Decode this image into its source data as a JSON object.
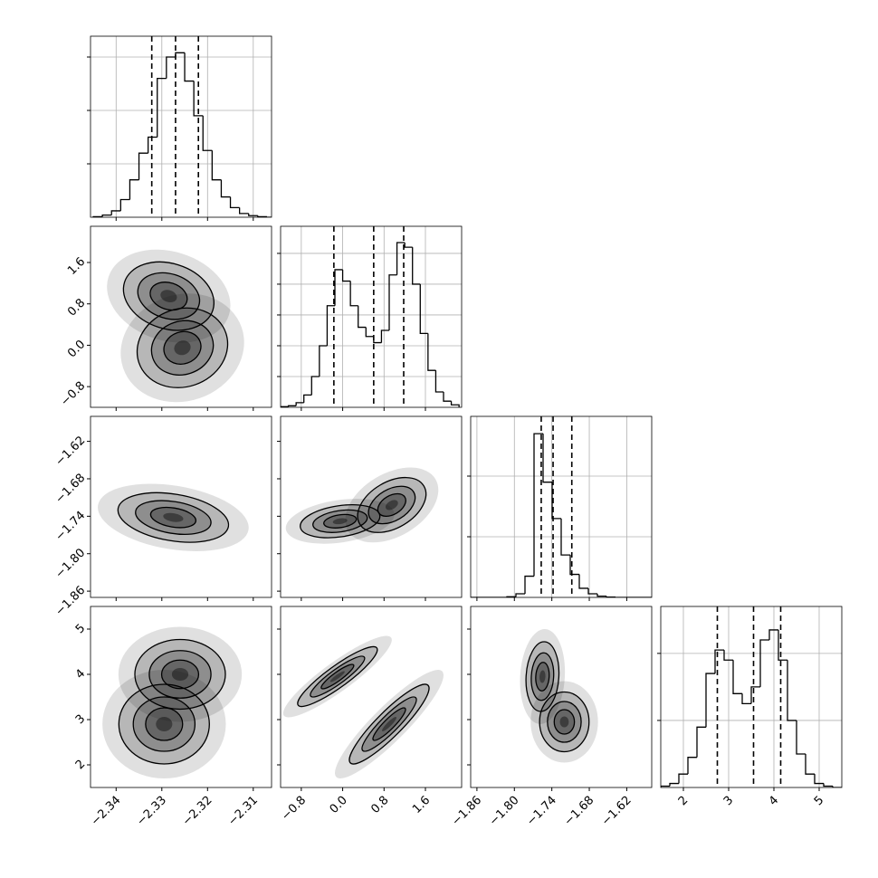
{
  "chart_data": {
    "type": "corner",
    "grid": true,
    "line_color": "#000000",
    "density_color": "#000000",
    "parameters": [
      {
        "lim": [
          -2.3456,
          -2.306
        ],
        "ticks": [
          {
            "value": -2.34,
            "label": "−2.34"
          },
          {
            "value": -2.33,
            "label": "−2.33"
          },
          {
            "value": -2.32,
            "label": "−2.32"
          },
          {
            "value": -2.31,
            "label": "−2.31"
          }
        ],
        "quantiles": [
          -2.3322,
          -2.327,
          -2.322
        ],
        "hist": {
          "bins": [
            -2.345,
            -2.343,
            -2.341,
            -2.339,
            -2.337,
            -2.335,
            -2.333,
            -2.331,
            -2.329,
            -2.327,
            -2.325,
            -2.323,
            -2.321,
            -2.319,
            -2.317,
            -2.315,
            -2.313,
            -2.311,
            -2.309,
            -2.307,
            -2.305
          ],
          "counts": [
            10,
            40,
            120,
            330,
            700,
            1200,
            1500,
            2600,
            3000,
            3080,
            2550,
            1900,
            1250,
            700,
            380,
            180,
            70,
            30,
            10,
            0
          ],
          "ylim": [
            0,
            3390
          ],
          "yticks": [
            1000,
            2000,
            3000
          ]
        },
        "pairs": []
      },
      {
        "lim": [
          -1.2,
          2.3
        ],
        "ticks": [
          {
            "value": -0.8,
            "label": "−0.8"
          },
          {
            "value": 0.0,
            "label": "0.0"
          },
          {
            "value": 0.8,
            "label": "0.8"
          },
          {
            "value": 1.6,
            "label": "1.6"
          }
        ],
        "quantiles": [
          -0.17,
          0.6,
          1.18
        ],
        "hist": {
          "bins": [
            -1.2,
            -1.05,
            -0.9,
            -0.75,
            -0.6,
            -0.45,
            -0.3,
            -0.15,
            0,
            0.15,
            0.3,
            0.45,
            0.6,
            0.75,
            0.9,
            1.05,
            1.2,
            1.35,
            1.5,
            1.65,
            1.8,
            1.95,
            2.1,
            2.25
          ],
          "counts": [
            2,
            5,
            15,
            40,
            100,
            200,
            330,
            447,
            410,
            330,
            260,
            230,
            210,
            250,
            430,
            535,
            520,
            400,
            240,
            120,
            50,
            20,
            8
          ],
          "ylim": [
            0,
            588
          ],
          "yticks": [
            100,
            200,
            300,
            400,
            500
          ]
        },
        "pairs": [
          {
            "modes": [
              {
                "x": -2.3285,
                "y": 0.95,
                "sx": 0.0045,
                "sy": 0.3,
                "rho": -0.2
              },
              {
                "x": -2.3255,
                "y": -0.05,
                "sx": 0.0045,
                "sy": 0.35,
                "rho": 0.1
              }
            ]
          }
        ]
      },
      {
        "lim": [
          -1.87,
          -1.58
        ],
        "ticks": [
          {
            "value": -1.86,
            "label": "−1.86"
          },
          {
            "value": -1.8,
            "label": "−1.80"
          },
          {
            "value": -1.74,
            "label": "−1.74"
          },
          {
            "value": -1.68,
            "label": "−1.68"
          },
          {
            "value": -1.62,
            "label": "−1.62"
          }
        ],
        "quantiles": [
          -1.757,
          -1.738,
          -1.708
        ],
        "hist": {
          "bins": [
            -1.87,
            -1.8555,
            -1.841,
            -1.8265,
            -1.812,
            -1.7975,
            -1.783,
            -1.7685,
            -1.754,
            -1.7395,
            -1.725,
            -1.7105,
            -1.696,
            -1.6815,
            -1.667,
            -1.6525,
            -1.638,
            -1.6235,
            -1.609,
            -1.5945,
            -1.58
          ],
          "counts": [
            0,
            0,
            0,
            0,
            10,
            60,
            350,
            2700,
            1900,
            1300,
            700,
            380,
            150,
            60,
            20,
            5,
            0,
            0,
            0,
            0
          ],
          "ylim": [
            0,
            2985
          ],
          "yticks": [
            1000,
            2000
          ]
        },
        "pairs": [
          {
            "modes": [
              {
                "x": -2.3275,
                "y": -1.742,
                "sx": 0.0055,
                "sy": 0.018,
                "rho": -0.3
              }
            ]
          },
          {
            "modes": [
              {
                "x": -0.05,
                "y": -1.748,
                "sx": 0.35,
                "sy": 0.012,
                "rho": 0.3
              },
              {
                "x": 0.95,
                "y": -1.722,
                "sx": 0.3,
                "sy": 0.02,
                "rho": 0.4
              }
            ]
          }
        ]
      },
      {
        "lim": [
          1.5,
          5.5
        ],
        "ticks": [
          2,
          3,
          4,
          5
        ],
        "quantiles": [
          2.75,
          3.55,
          4.15
        ],
        "hist": {
          "bins": [
            1.5,
            1.7,
            1.9,
            2.1,
            2.3,
            2.5,
            2.7,
            2.9,
            3.1,
            3.3,
            3.5,
            3.7,
            3.9,
            4.1,
            4.3,
            4.5,
            4.7,
            4.9,
            5.1,
            5.3,
            5.5
          ],
          "counts": [
            20,
            60,
            200,
            450,
            900,
            1700,
            2050,
            1900,
            1400,
            1250,
            1500,
            2200,
            2350,
            1900,
            1000,
            500,
            200,
            60,
            20,
            0
          ],
          "ylim": [
            0,
            2700
          ],
          "yticks": [
            1000,
            2000
          ]
        },
        "pairs": [
          {
            "modes": [
              {
                "x": -2.326,
                "y": 4.0,
                "sx": 0.0045,
                "sy": 0.35,
                "rho": 0
              },
              {
                "x": -2.3295,
                "y": 2.9,
                "sx": 0.0045,
                "sy": 0.4,
                "rho": 0
              }
            ]
          },
          {
            "modes": [
              {
                "x": -0.1,
                "y": 3.95,
                "sx": 0.35,
                "sy": 0.3,
                "rho": 0.9
              },
              {
                "x": 0.9,
                "y": 2.9,
                "sx": 0.35,
                "sy": 0.4,
                "rho": 0.9
              }
            ]
          },
          {
            "modes": [
              {
                "x": -1.755,
                "y": 3.95,
                "sx": 0.012,
                "sy": 0.35,
                "rho": 0.1
              },
              {
                "x": -1.72,
                "y": 2.95,
                "sx": 0.018,
                "sy": 0.3,
                "rho": 0
              }
            ]
          }
        ]
      }
    ]
  }
}
